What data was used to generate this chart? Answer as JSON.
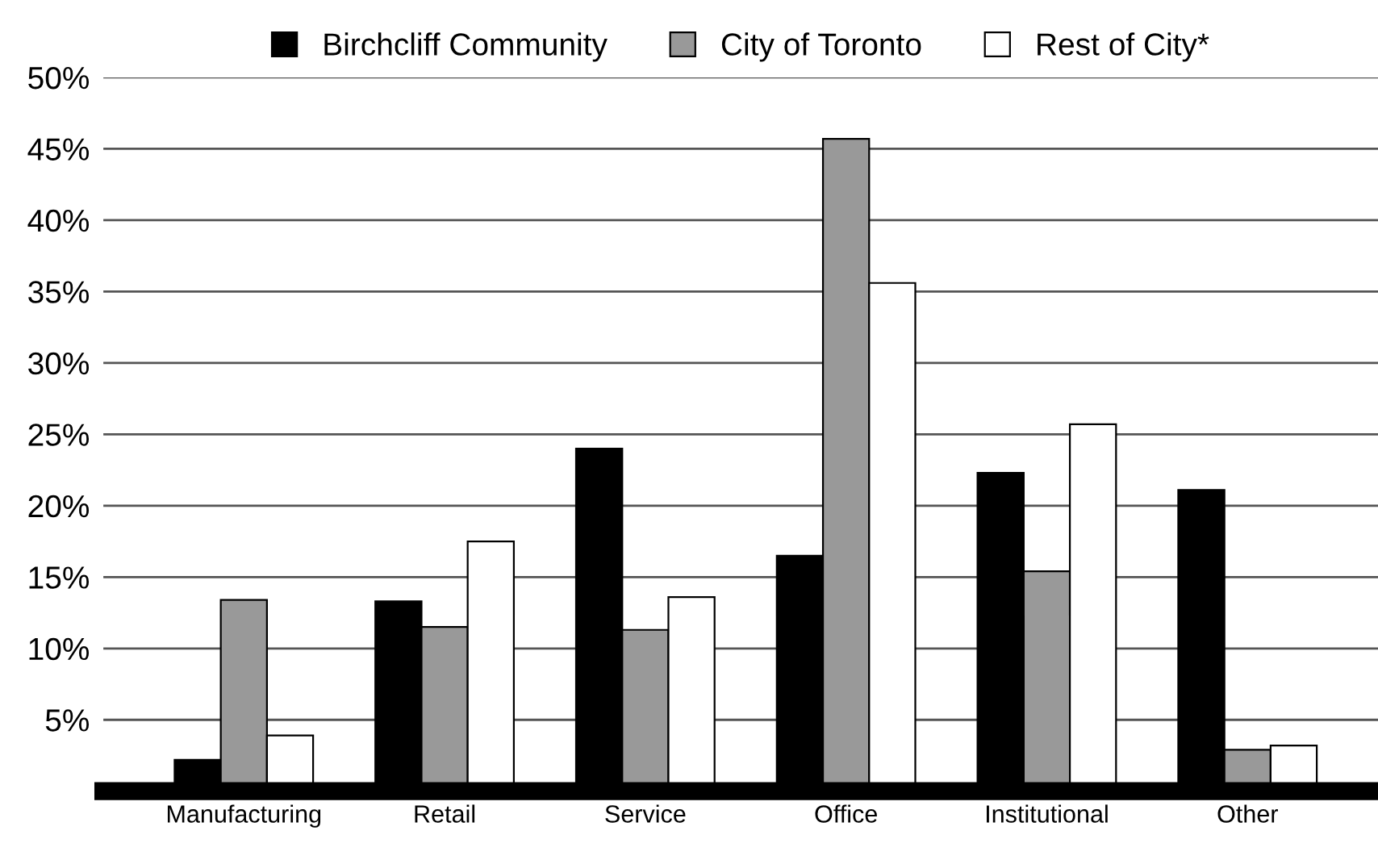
{
  "chart_data": {
    "type": "bar",
    "categories": [
      "Manufacturing",
      "Retail",
      "Service",
      "Office",
      "Institutional",
      "Other"
    ],
    "series": [
      {
        "name": "Birchcliff Community",
        "color": "#000000",
        "values": [
          2.2,
          13.3,
          24.0,
          16.5,
          22.3,
          21.1
        ]
      },
      {
        "name": "City of Toronto",
        "color": "#999999",
        "values": [
          13.4,
          11.5,
          11.3,
          45.7,
          15.4,
          2.9
        ]
      },
      {
        "name": "Rest of City*",
        "color": "#ffffff",
        "values": [
          3.9,
          17.5,
          13.6,
          35.6,
          25.7,
          3.2
        ]
      }
    ],
    "ylim": [
      0,
      50
    ],
    "yticks": [
      {
        "value": 5,
        "label": "5%"
      },
      {
        "value": 10,
        "label": "10%"
      },
      {
        "value": 15,
        "label": "15%"
      },
      {
        "value": 20,
        "label": "20%"
      },
      {
        "value": 25,
        "label": "25%"
      },
      {
        "value": 30,
        "label": "30%"
      },
      {
        "value": 35,
        "label": "35%"
      },
      {
        "value": 40,
        "label": "40%"
      },
      {
        "value": 45,
        "label": "45%"
      },
      {
        "value": 50,
        "label": "50%"
      }
    ],
    "grid": "y",
    "legend": "top"
  }
}
